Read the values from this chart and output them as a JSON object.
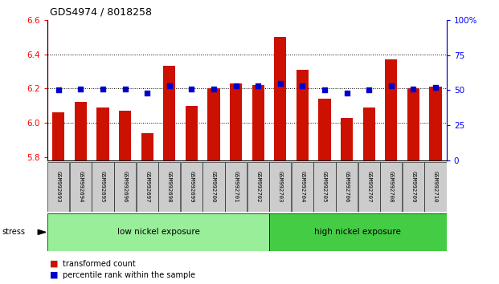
{
  "title": "GDS4974 / 8018258",
  "samples": [
    "GSM992693",
    "GSM992694",
    "GSM992695",
    "GSM992696",
    "GSM992697",
    "GSM992698",
    "GSM992699",
    "GSM992700",
    "GSM992701",
    "GSM992702",
    "GSM992703",
    "GSM992704",
    "GSM992705",
    "GSM992706",
    "GSM992707",
    "GSM992708",
    "GSM992709",
    "GSM992710"
  ],
  "bar_values": [
    6.06,
    6.12,
    6.09,
    6.07,
    5.94,
    6.33,
    6.1,
    6.2,
    6.23,
    6.22,
    6.5,
    6.31,
    6.14,
    6.03,
    6.09,
    6.37,
    6.2,
    6.21
  ],
  "percentile_values": [
    50,
    51,
    51,
    51,
    48,
    53,
    51,
    51,
    53,
    53,
    55,
    53,
    50,
    48,
    50,
    53,
    51,
    52
  ],
  "ylim_left": [
    5.78,
    6.6
  ],
  "ylim_right": [
    0,
    100
  ],
  "yticks_left": [
    5.8,
    6.0,
    6.2,
    6.4,
    6.6
  ],
  "yticks_right": [
    0,
    25,
    50,
    75,
    100
  ],
  "bar_color": "#cc1100",
  "dot_color": "#0000cc",
  "group1_label": "low nickel exposure",
  "group2_label": "high nickel exposure",
  "group1_count": 10,
  "group2_count": 8,
  "group1_color": "#99ee99",
  "group2_color": "#44cc44",
  "stress_label": "stress",
  "legend_bar": "transformed count",
  "legend_dot": "percentile rank within the sample",
  "bg_color": "#ffffff",
  "gray_color": "#cccccc",
  "grid_yticks": [
    6.0,
    6.2,
    6.4
  ]
}
